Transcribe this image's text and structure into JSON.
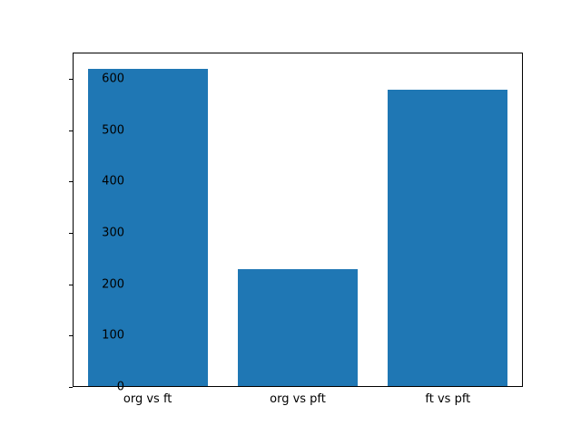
{
  "chart_data": {
    "type": "bar",
    "title": "",
    "xlabel": "",
    "ylabel": "",
    "categories": [
      "org vs ft",
      "org vs pft",
      "ft vs pft"
    ],
    "values": [
      620,
      228,
      580
    ],
    "ylim": [
      0,
      651
    ],
    "yticks": [
      0,
      100,
      200,
      300,
      400,
      500,
      600
    ],
    "ytick_labels": [
      "0",
      "100",
      "200",
      "300",
      "400",
      "500",
      "600"
    ],
    "bar_color": "#1f77b4",
    "bar_width_fraction": 0.8,
    "grid": false,
    "legend": null
  }
}
